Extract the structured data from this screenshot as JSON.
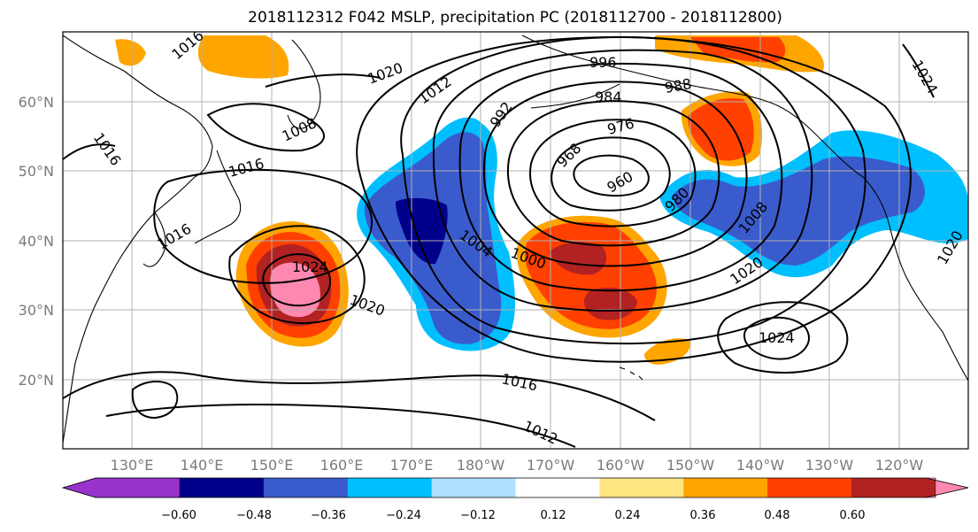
{
  "title": "2018112312 F042 MSLP, precipitation PC (2018112700 - 2018112800)",
  "map": {
    "lon_ticks": [
      "130°E",
      "140°E",
      "150°E",
      "160°E",
      "170°E",
      "180°W",
      "170°W",
      "160°W",
      "150°W",
      "140°W",
      "130°W",
      "120°W"
    ],
    "lat_ticks": [
      "60°N",
      "50°N",
      "40°N",
      "30°N",
      "20°N"
    ],
    "isobar_labels": [
      "1016",
      "1020",
      "1012",
      "996",
      "984",
      "988",
      "1024",
      "1016",
      "992",
      "976",
      "1008",
      "968",
      "960",
      "1016",
      "980",
      "1008",
      "1016",
      "1004",
      "1000",
      "1024",
      "1020",
      "1020",
      "1024",
      "1016",
      "1012",
      "1020"
    ]
  },
  "colorbar": {
    "tick_labels": [
      "−0.60",
      "−0.48",
      "−0.36",
      "−0.24",
      "−0.12",
      "0.12",
      "0.24",
      "0.36",
      "0.48",
      "0.60"
    ],
    "colors": [
      "#9933cc",
      "#00008b",
      "#3a5bcc",
      "#00bfff",
      "#b0e0ff",
      "#ffffff",
      "#ffe680",
      "#ffa500",
      "#ff4000",
      "#b22222",
      "#ff88b0"
    ],
    "extend": "both"
  }
}
